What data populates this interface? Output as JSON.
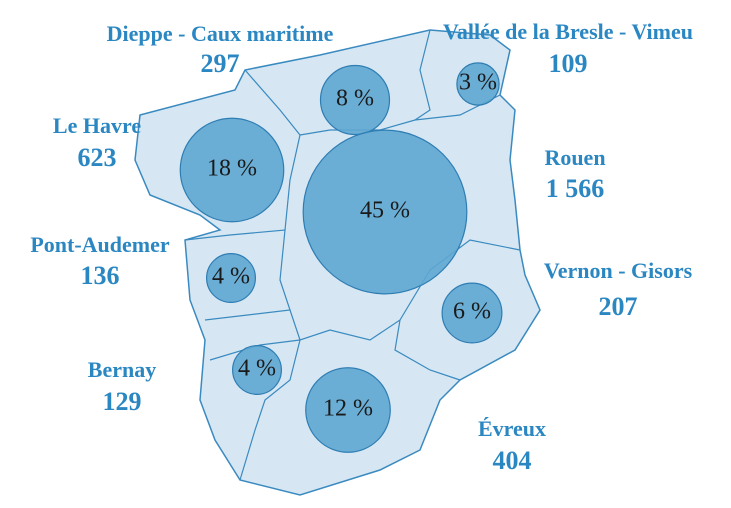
{
  "regions": [
    {
      "name": "Dieppe - Caux maritime",
      "count": "297",
      "share": 8,
      "share_label": "8 %"
    },
    {
      "name": "Vallée de la Bresle - Vimeu",
      "count": "109",
      "share": 3,
      "share_label": "3 %"
    },
    {
      "name": "Le Havre",
      "count": "623",
      "share": 18,
      "share_label": "18 %"
    },
    {
      "name": "Rouen",
      "count": "1 566",
      "share": 45,
      "share_label": "45 %"
    },
    {
      "name": "Pont-Audemer",
      "count": "136",
      "share": 4,
      "share_label": "4 %"
    },
    {
      "name": "Vernon - Gisors",
      "count": "207",
      "share": 6,
      "share_label": "6 %"
    },
    {
      "name": "Bernay",
      "count": "129",
      "share": 4,
      "share_label": "4 %"
    },
    {
      "name": "Évreux",
      "count": "404",
      "share": 12,
      "share_label": "12 %"
    }
  ]
}
